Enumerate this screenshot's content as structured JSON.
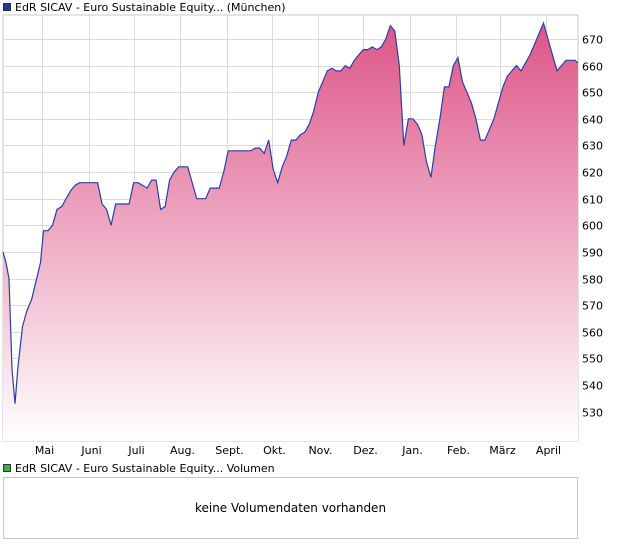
{
  "chart_data": [
    {
      "type": "area",
      "legend_label": "EdR SICAV - Euro Sustainable Equity... (München)",
      "legend_color": "#1f3a93",
      "line_color": "#2a3fa8",
      "fill_top_color": "#dd5588",
      "fill_bottom_color": "#ffffff",
      "grid": true,
      "ylim": [
        519,
        679
      ],
      "yticks": [
        530,
        540,
        550,
        560,
        570,
        580,
        590,
        600,
        610,
        620,
        630,
        640,
        650,
        660,
        670
      ],
      "xtick_labels": [
        "Mai",
        "Juni",
        "Juli",
        "Aug.",
        "Sept.",
        "Okt.",
        "Nov.",
        "Dez.",
        "Jan.",
        "Feb.",
        "März",
        "April"
      ],
      "xtick_dates": [
        "2023-05-01",
        "2023-06-01",
        "2023-07-01",
        "2023-08-01",
        "2023-09-01",
        "2023-10-01",
        "2023-11-01",
        "2023-12-01",
        "2024-01-01",
        "2024-02-01",
        "2024-03-01",
        "2024-04-01"
      ],
      "xlim": [
        "2023-04-05",
        "2024-04-22"
      ],
      "x": [
        "2023-04-05",
        "2023-04-07",
        "2023-04-09",
        "2023-04-11",
        "2023-04-13",
        "2023-04-15",
        "2023-04-18",
        "2023-04-21",
        "2023-04-24",
        "2023-04-27",
        "2023-04-30",
        "2023-05-02",
        "2023-05-05",
        "2023-05-08",
        "2023-05-11",
        "2023-05-14",
        "2023-05-17",
        "2023-05-20",
        "2023-05-23",
        "2023-05-26",
        "2023-05-29",
        "2023-06-01",
        "2023-06-04",
        "2023-06-07",
        "2023-06-10",
        "2023-06-13",
        "2023-06-16",
        "2023-06-19",
        "2023-06-22",
        "2023-06-25",
        "2023-06-28",
        "2023-07-01",
        "2023-07-04",
        "2023-07-07",
        "2023-07-10",
        "2023-07-13",
        "2023-07-16",
        "2023-07-19",
        "2023-07-22",
        "2023-07-25",
        "2023-07-28",
        "2023-07-31",
        "2023-08-03",
        "2023-08-06",
        "2023-08-09",
        "2023-08-12",
        "2023-08-15",
        "2023-08-18",
        "2023-08-21",
        "2023-08-24",
        "2023-08-27",
        "2023-08-30",
        "2023-09-02",
        "2023-09-05",
        "2023-09-08",
        "2023-09-11",
        "2023-09-14",
        "2023-09-17",
        "2023-09-20",
        "2023-09-23",
        "2023-09-26",
        "2023-09-29",
        "2023-10-02",
        "2023-10-05",
        "2023-10-08",
        "2023-10-11",
        "2023-10-14",
        "2023-10-17",
        "2023-10-20",
        "2023-10-23",
        "2023-10-26",
        "2023-10-29",
        "2023-11-01",
        "2023-11-04",
        "2023-11-07",
        "2023-11-10",
        "2023-11-13",
        "2023-11-16",
        "2023-11-19",
        "2023-11-22",
        "2023-11-25",
        "2023-11-28",
        "2023-12-01",
        "2023-12-04",
        "2023-12-07",
        "2023-12-10",
        "2023-12-13",
        "2023-12-16",
        "2023-12-19",
        "2023-12-22",
        "2023-12-25",
        "2023-12-28",
        "2023-12-31",
        "2024-01-03",
        "2024-01-06",
        "2024-01-09",
        "2024-01-12",
        "2024-01-15",
        "2024-01-18",
        "2024-01-21",
        "2024-01-24",
        "2024-01-27",
        "2024-01-30",
        "2024-02-02",
        "2024-02-05",
        "2024-02-08",
        "2024-02-11",
        "2024-02-14",
        "2024-02-17",
        "2024-02-20",
        "2024-02-23",
        "2024-02-26",
        "2024-02-29",
        "2024-03-03",
        "2024-03-06",
        "2024-03-09",
        "2024-03-12",
        "2024-03-15",
        "2024-03-18",
        "2024-03-21",
        "2024-03-24",
        "2024-03-27",
        "2024-03-30",
        "2024-04-02",
        "2024-04-05",
        "2024-04-08",
        "2024-04-11",
        "2024-04-14",
        "2024-04-17",
        "2024-04-20",
        "2024-04-22"
      ],
      "y": [
        590,
        586,
        580,
        546,
        533,
        547,
        562,
        568,
        572,
        579,
        586,
        598,
        598,
        600,
        606,
        607,
        610,
        613,
        615,
        616,
        616,
        616,
        616,
        616,
        608,
        606,
        600,
        608,
        608,
        608,
        608,
        616,
        616,
        615,
        614,
        617,
        617,
        606,
        607,
        617,
        620,
        622,
        622,
        622,
        616,
        610,
        610,
        610,
        614,
        614,
        614,
        620,
        628,
        628,
        628,
        628,
        628,
        628,
        629,
        629,
        627,
        632,
        621,
        616,
        622,
        626,
        632,
        632,
        634,
        635,
        638,
        643,
        650,
        654,
        658,
        659,
        658,
        658,
        660,
        659,
        662,
        664,
        666,
        666,
        667,
        666,
        667,
        670,
        675,
        673,
        660,
        630,
        640,
        640,
        638,
        634,
        624,
        618,
        630,
        640,
        652,
        652,
        660,
        663,
        654,
        650,
        646,
        640,
        632,
        632,
        636,
        640,
        646,
        652,
        656,
        658,
        660,
        658,
        661,
        664,
        668,
        672,
        676,
        670,
        664,
        658,
        660,
        662,
        662,
        662,
        661
      ],
      "y_note_excluded": true
    },
    {
      "type": "bar",
      "legend_label": "EdR SICAV - Euro Sustainable Equity... Volumen",
      "legend_color": "#3cb043",
      "empty_message": "keine Volumendaten vorhanden"
    }
  ]
}
